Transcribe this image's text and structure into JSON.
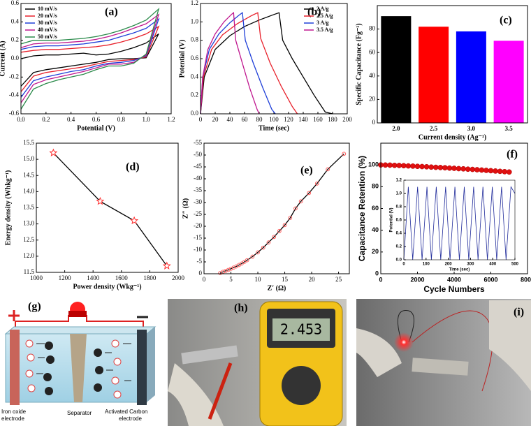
{
  "chart_data": [
    {
      "type": "line",
      "panel": "(a)",
      "xlabel": "Potential (V)",
      "ylabel": "Current (A)",
      "legend": "upper left",
      "xlim": [
        0,
        1.2
      ],
      "xticks": [
        {
          "value": 0,
          "label": "0.0"
        },
        0.2,
        0.4,
        0.6,
        0.8,
        {
          "value": 1,
          "label": "1.0"
        },
        1.2
      ],
      "ylim": [
        -0.6,
        0.6
      ],
      "yticks": [
        -0.6,
        -0.4,
        -0.2,
        {
          "value": 0,
          "label": "0.0"
        },
        0.2,
        0.4,
        0.6
      ],
      "x": [
        0,
        0.1,
        0.2,
        0.3,
        0.4,
        0.5,
        0.6,
        0.7,
        0.8,
        0.9,
        1.0,
        1.1,
        1.0,
        0.9,
        0.8,
        0.7,
        0.6,
        0.5,
        0.4,
        0.3,
        0.2,
        0.1,
        0
      ],
      "series": [
        {
          "name": "10 mV/s",
          "color": "#000000",
          "values": [
            0,
            0.03,
            0.04,
            0.04,
            0.05,
            0.06,
            0.04,
            0.05,
            0.08,
            0.12,
            0.17,
            0.27,
            0.01,
            0,
            0,
            -0.01,
            -0.04,
            -0.06,
            -0.08,
            -0.1,
            -0.12,
            -0.15,
            -0.3
          ]
        },
        {
          "name": "20 mV/s",
          "color": "#e8202a",
          "values": [
            0.07,
            0.09,
            0.1,
            0.1,
            0.11,
            0.12,
            0.13,
            0.15,
            0.18,
            0.22,
            0.27,
            0.35,
            0.02,
            -0.01,
            -0.02,
            -0.03,
            -0.06,
            -0.09,
            -0.11,
            -0.13,
            -0.15,
            -0.19,
            -0.36
          ]
        },
        {
          "name": "30 mV/s",
          "color": "#1f3fd8",
          "values": [
            0.1,
            0.13,
            0.14,
            0.14,
            0.15,
            0.16,
            0.18,
            0.2,
            0.24,
            0.28,
            0.33,
            0.43,
            0.03,
            -0.02,
            -0.04,
            -0.05,
            -0.08,
            -0.12,
            -0.14,
            -0.17,
            -0.2,
            -0.24,
            -0.42
          ]
        },
        {
          "name": "40 mV/s",
          "color": "#c0178f",
          "values": [
            0.12,
            0.16,
            0.17,
            0.17,
            0.18,
            0.19,
            0.21,
            0.24,
            0.28,
            0.33,
            0.38,
            0.48,
            0.04,
            -0.04,
            -0.06,
            -0.06,
            -0.1,
            -0.14,
            -0.17,
            -0.2,
            -0.23,
            -0.28,
            -0.48
          ]
        },
        {
          "name": "50 mV/s",
          "color": "#2a8a4a",
          "values": [
            0.16,
            0.2,
            0.2,
            0.2,
            0.21,
            0.22,
            0.24,
            0.27,
            0.31,
            0.36,
            0.42,
            0.54,
            0.05,
            -0.05,
            -0.08,
            -0.08,
            -0.12,
            -0.17,
            -0.2,
            -0.23,
            -0.27,
            -0.33,
            -0.55
          ]
        }
      ]
    },
    {
      "type": "line",
      "panel": "(b)",
      "xlabel": "Time (sec)",
      "ylabel": "Potential (V)",
      "legend": "upper right",
      "xlim": [
        0,
        200
      ],
      "xticks": [
        0,
        20,
        40,
        60,
        80,
        100,
        120,
        140,
        160,
        180,
        200
      ],
      "ylim": [
        0,
        1.2
      ],
      "yticks": [
        {
          "value": 0,
          "label": "0.0"
        },
        0.2,
        0.4,
        0.6,
        0.8,
        {
          "value": 1,
          "label": "1.0"
        },
        1.2
      ],
      "series": [
        {
          "name": "2 A/g",
          "color": "#000000",
          "x": [
            0,
            5,
            20,
            40,
            60,
            80,
            100,
            107,
            112,
            125,
            140,
            155,
            170,
            180
          ],
          "values": [
            0,
            0.4,
            0.7,
            0.85,
            0.95,
            1.02,
            1.08,
            1.1,
            0.8,
            0.6,
            0.4,
            0.2,
            0.02,
            0
          ]
        },
        {
          "name": "2.5 A/g",
          "color": "#e8202a",
          "x": [
            0,
            4,
            15,
            30,
            50,
            70,
            78,
            82,
            95,
            110,
            125,
            132
          ],
          "values": [
            0,
            0.4,
            0.7,
            0.86,
            0.98,
            1.07,
            1.1,
            0.82,
            0.55,
            0.3,
            0.08,
            0
          ]
        },
        {
          "name": "3 A/g",
          "color": "#1f3fd8",
          "x": [
            0,
            3,
            12,
            25,
            40,
            52,
            57,
            61,
            72,
            85,
            97,
            102
          ],
          "values": [
            0,
            0.4,
            0.7,
            0.87,
            0.99,
            1.07,
            1.1,
            0.8,
            0.55,
            0.28,
            0.05,
            0
          ]
        },
        {
          "name": "3.5 A/g",
          "color": "#c0178f",
          "x": [
            0,
            3,
            10,
            20,
            32,
            42,
            45,
            48,
            57,
            67,
            77,
            80
          ],
          "values": [
            0,
            0.4,
            0.7,
            0.87,
            1.0,
            1.08,
            1.1,
            0.8,
            0.55,
            0.28,
            0.05,
            0
          ]
        }
      ]
    },
    {
      "type": "bar",
      "panel": "(c)",
      "xlabel": "Current density (Ag⁻¹)",
      "ylabel": "Specific Capacitance (Fg⁻¹)",
      "categories": [
        "2.0",
        "2.5",
        "3.0",
        "3.5"
      ],
      "values": [
        91,
        82,
        78,
        70
      ],
      "colors": [
        "#000000",
        "#ff0000",
        "#0000ff",
        "#ff00ff"
      ],
      "ylim": [
        0,
        100
      ],
      "yticks": [
        0,
        20,
        40,
        60,
        80
      ]
    },
    {
      "type": "line",
      "panel": "(d)",
      "xlabel": "Power density (Wkg⁻¹)",
      "ylabel": "Energy density (Whkg⁻¹)",
      "xlim": [
        1000,
        2000
      ],
      "xticks": [
        1000,
        1200,
        1400,
        1600,
        1800,
        2000
      ],
      "ylim": [
        11.5,
        15.5
      ],
      "yticks": [
        11.5,
        {
          "value": 12,
          "label": "12.0"
        },
        12.5,
        {
          "value": 13,
          "label": "13.0"
        },
        13.5,
        {
          "value": 14,
          "label": "14.0"
        },
        14.5,
        {
          "value": 15,
          "label": "15.0"
        },
        15.5
      ],
      "series": [
        {
          "color": "#000000",
          "marker": "star",
          "marker_color": "#ff3030",
          "x": [
            1120,
            1450,
            1690,
            1920
          ],
          "values": [
            15.2,
            13.7,
            13.1,
            11.7
          ]
        }
      ]
    },
    {
      "type": "scatter",
      "panel": "(e)",
      "xlabel": "Z′ (Ω)",
      "ylabel": "Z″ (Ω)",
      "xlim": [
        0,
        27
      ],
      "xticks": [
        0,
        5,
        10,
        15,
        20,
        25
      ],
      "ylim": [
        0,
        -55
      ],
      "yticks": [
        0,
        -5,
        -10,
        -15,
        -20,
        -25,
        -30,
        -35,
        -40,
        -45,
        -50,
        -55
      ],
      "series": [
        {
          "color": "#000000",
          "marker": "circle",
          "marker_color": "#ff6060",
          "line": true,
          "x": [
            3,
            3.5,
            4,
            4.5,
            5,
            5.5,
            6,
            6.5,
            7,
            7.5,
            8,
            9,
            10,
            11,
            12,
            13,
            14,
            15,
            16,
            17,
            18,
            19.5,
            21,
            23,
            26
          ],
          "values": [
            -0.3,
            -0.8,
            -1.2,
            -1.6,
            -2.1,
            -2.6,
            -3.1,
            -3.7,
            -4.3,
            -5,
            -5.7,
            -7.2,
            -9,
            -11,
            -13.2,
            -15.5,
            -18,
            -20.5,
            -23.5,
            -27.5,
            -30.5,
            -34,
            -38,
            -44,
            -50.5
          ]
        }
      ]
    },
    {
      "type": "scatter",
      "panel": "(f)",
      "xlabel": "Cycle Numbers",
      "ylabel": "Capacitance Retention (%)",
      "xlim": [
        0,
        8000
      ],
      "xticks": [
        0,
        2000,
        4000,
        6000,
        8000
      ],
      "ylim": [
        0,
        120
      ],
      "yticks": [
        0,
        20,
        40,
        60,
        80,
        100
      ],
      "series": [
        {
          "color": "#e01010",
          "marker": "ball",
          "marker_color": "#e01010",
          "x": [
            0,
            250,
            500,
            750,
            1000,
            1250,
            1500,
            1750,
            2000,
            2250,
            2500,
            2750,
            3000,
            3250,
            3500,
            3750,
            4000,
            4250,
            4500,
            4750,
            5000,
            5250,
            5500,
            5750,
            6000,
            6250,
            6500,
            6750,
            7000
          ],
          "values": [
            100,
            99.9,
            99.8,
            99.6,
            99.5,
            99.3,
            99.1,
            98.9,
            98.7,
            98.5,
            98.3,
            98.0,
            97.8,
            97.6,
            97.4,
            97.1,
            96.9,
            96.6,
            96.4,
            96.1,
            95.9,
            95.6,
            95.3,
            95.0,
            94.7,
            94.4,
            94.1,
            93.8,
            93.5
          ]
        }
      ]
    },
    {
      "type": "line",
      "xlabel": "Time (sec)",
      "ylabel": "Potential (V)",
      "xlim": [
        0,
        500
      ],
      "xticks": [
        0,
        100,
        200,
        300,
        400,
        500
      ],
      "ylim": [
        0,
        1.2
      ],
      "yticks": [
        {
          "value": 0,
          "label": "0.0"
        },
        0.2,
        0.4,
        0.6,
        0.8,
        {
          "value": 1,
          "label": "1.0"
        },
        1.2
      ],
      "series": [
        {
          "color": "#1f2a9a",
          "x": [
            0,
            20,
            40,
            62,
            82,
            104,
            124,
            146,
            166,
            188,
            208,
            230,
            250,
            272,
            292,
            314,
            334,
            356,
            376,
            398,
            418,
            440,
            460,
            482,
            500
          ],
          "values": [
            0,
            1.1,
            0,
            1.1,
            0,
            1.1,
            0,
            1.1,
            0,
            1.1,
            0,
            1.1,
            0,
            1.1,
            0,
            1.1,
            0,
            1.1,
            0,
            1.1,
            0,
            1.1,
            0,
            1.1,
            1.0
          ]
        }
      ]
    }
  ],
  "photos": [
    {
      "label": "(g)",
      "anode": [
        "Iron oxide",
        "electrode"
      ],
      "separator": "Separator",
      "cathode": [
        "Activated Carbon",
        "electrode"
      ]
    },
    {
      "label": "(h)",
      "display": "2.453"
    },
    {
      "label": "(i)"
    }
  ]
}
